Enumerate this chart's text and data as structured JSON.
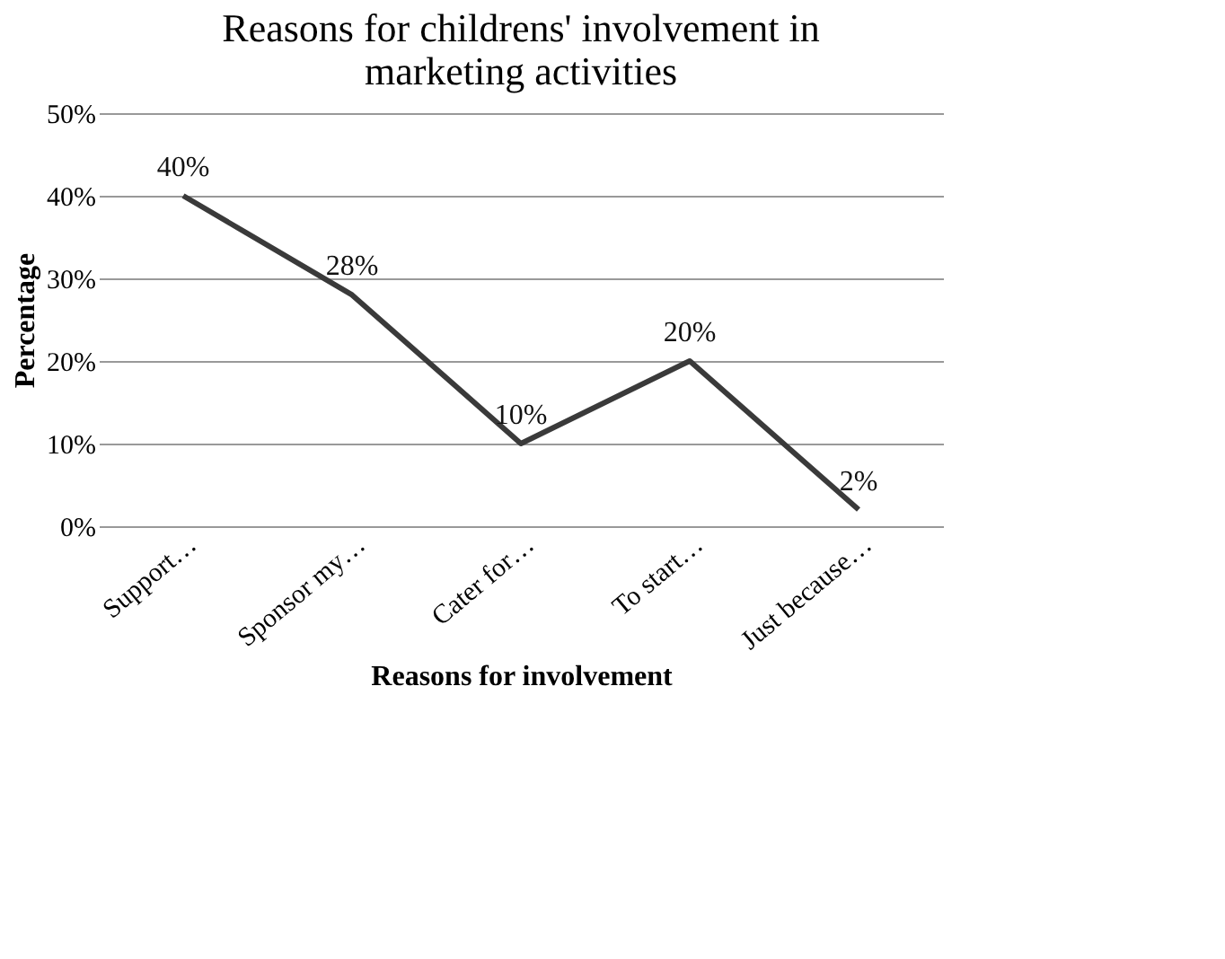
{
  "chart_data": {
    "type": "line",
    "title": "Reasons for childrens' involvement in marketing activities",
    "xlabel": "Reasons for involvement",
    "ylabel": "Percentage",
    "categories": [
      "Support…",
      "Sponsor my…",
      "Cater for…",
      "To start…",
      "Just because…"
    ],
    "series": [
      {
        "color": "#3a3a3a",
        "values": [
          40,
          28,
          10,
          20,
          2
        ]
      }
    ],
    "value_labels": [
      "40%",
      "28%",
      "10%",
      "20%",
      "2%"
    ],
    "ylim": [
      0,
      50
    ],
    "yticks": [
      {
        "value": 0,
        "label": "0%"
      },
      {
        "value": 10,
        "label": "10%"
      },
      {
        "value": 20,
        "label": "20%"
      },
      {
        "value": 30,
        "label": "30%"
      },
      {
        "value": 40,
        "label": "40%"
      },
      {
        "value": 50,
        "label": "50%"
      }
    ],
    "grid": "y",
    "marker": "none",
    "line_style": "solid"
  }
}
